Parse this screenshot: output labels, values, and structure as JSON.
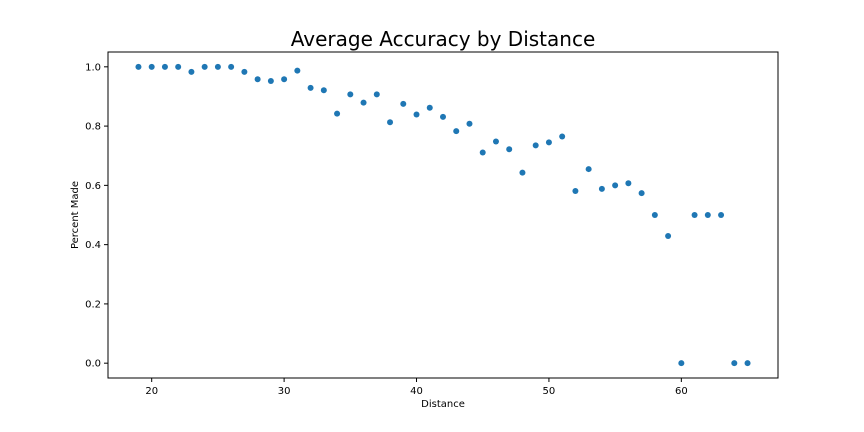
{
  "chart_data": {
    "type": "scatter",
    "title": "Average Accuracy by Distance",
    "xlabel": "Distance",
    "ylabel": "Percent Made",
    "xlim": [
      16.7,
      67.3
    ],
    "ylim": [
      -0.05,
      1.05
    ],
    "xticks": [
      20,
      30,
      40,
      50,
      60
    ],
    "yticks": [
      0.0,
      0.2,
      0.4,
      0.6,
      0.8,
      1.0
    ],
    "xtick_labels": [
      "20",
      "30",
      "40",
      "50",
      "60"
    ],
    "ytick_labels": [
      "0.0",
      "0.2",
      "0.4",
      "0.6",
      "0.8",
      "1.0"
    ],
    "grid": false,
    "marker_color": "#1f77b4",
    "series": [
      {
        "x": [
          19,
          20,
          21,
          22,
          23,
          24,
          25,
          26,
          27,
          28,
          29,
          30,
          31,
          32,
          33,
          34,
          35,
          36,
          37,
          38,
          39,
          40,
          41,
          42,
          43,
          44,
          45,
          46,
          47,
          48,
          49,
          50,
          51,
          52,
          53,
          54,
          55,
          56,
          57,
          58,
          59,
          60,
          61,
          62,
          63,
          64,
          65
        ],
        "y": [
          1.0,
          1.0,
          1.0,
          1.0,
          0.983,
          1.0,
          1.0,
          1.0,
          0.983,
          0.958,
          0.952,
          0.958,
          0.987,
          0.929,
          0.921,
          0.842,
          0.907,
          0.879,
          0.907,
          0.813,
          0.875,
          0.839,
          0.862,
          0.831,
          0.783,
          0.808,
          0.711,
          0.748,
          0.722,
          0.643,
          0.735,
          0.745,
          0.765,
          0.581,
          0.655,
          0.588,
          0.6,
          0.607,
          0.574,
          0.5,
          0.429,
          0.0,
          0.5,
          0.5,
          0.5,
          0.0,
          0.0
        ]
      }
    ]
  }
}
